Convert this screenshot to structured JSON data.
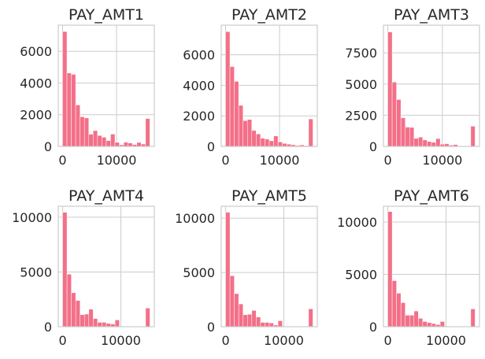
{
  "chart_data": [
    {
      "type": "bar",
      "title": "PAY_AMT1",
      "bin_lefts": [
        0,
        809,
        1618,
        2427,
        3236,
        4045,
        4854,
        5663,
        6472,
        7281,
        8090,
        8899,
        9708,
        10517,
        11326,
        12135,
        12944,
        13753,
        14562,
        15371
      ],
      "bin_width": 809,
      "values": [
        7250,
        4630,
        4550,
        2620,
        1870,
        1800,
        770,
        1000,
        690,
        580,
        370,
        780,
        260,
        100,
        270,
        220,
        120,
        250,
        150,
        1760
      ],
      "xlim": [
        -800,
        17000
      ],
      "ylim": [
        0,
        7650
      ],
      "xticks": [
        0,
        10000
      ],
      "xtick_labels": [
        "0",
        "10000"
      ],
      "yticks": [
        0,
        2000,
        4000,
        6000
      ],
      "ytick_labels": [
        "0",
        "2000",
        "4000",
        "6000"
      ]
    },
    {
      "type": "bar",
      "title": "PAY_AMT2",
      "bin_lefts": [
        0,
        810,
        1620,
        2430,
        3240,
        4050,
        4860,
        5670,
        6480,
        7290,
        8100,
        8910,
        9720,
        10530,
        11340,
        12150,
        12960,
        13770,
        14580,
        15390
      ],
      "bin_width": 810,
      "values": [
        7520,
        5230,
        4260,
        2690,
        1690,
        1770,
        1050,
        820,
        540,
        480,
        370,
        690,
        300,
        200,
        150,
        110,
        70,
        100,
        50,
        1800
      ],
      "xlim": [
        -800,
        17000
      ],
      "ylim": [
        0,
        7940
      ],
      "xticks": [
        0,
        10000
      ],
      "xtick_labels": [
        "0",
        "10000"
      ],
      "yticks": [
        0,
        2000,
        4000,
        6000
      ],
      "ytick_labels": [
        "0",
        "2000",
        "4000",
        "6000"
      ]
    },
    {
      "type": "bar",
      "title": "PAY_AMT3",
      "bin_lefts": [
        0,
        800,
        1600,
        2400,
        3200,
        4000,
        4800,
        5600,
        6400,
        7200,
        8000,
        8800,
        9600,
        10400,
        11200,
        12000,
        12800,
        13600,
        14400,
        15200
      ],
      "bin_width": 800,
      "values": [
        9180,
        5160,
        3760,
        2300,
        1550,
        1530,
        650,
        750,
        520,
        400,
        330,
        630,
        180,
        220,
        100,
        150,
        50,
        50,
        50,
        1620
      ],
      "xlim": [
        -800,
        16800
      ],
      "ylim": [
        0,
        9720
      ],
      "xticks": [
        0,
        10000
      ],
      "xtick_labels": [
        "0",
        "10000"
      ],
      "yticks": [
        0,
        2500,
        5000,
        7500
      ],
      "ytick_labels": [
        "0",
        "2500",
        "5000",
        "7500"
      ]
    },
    {
      "type": "bar",
      "title": "PAY_AMT4",
      "bin_lefts": [
        0,
        750,
        1500,
        2250,
        3000,
        3750,
        4500,
        5250,
        6000,
        6750,
        7500,
        8250,
        9000,
        9750,
        10500,
        11250,
        12000,
        12750,
        13500,
        14250
      ],
      "bin_width": 750,
      "values": [
        10450,
        4800,
        3100,
        2400,
        1100,
        1150,
        1600,
        750,
        400,
        400,
        300,
        250,
        620,
        0,
        0,
        0,
        0,
        0,
        0,
        1700
      ],
      "xlim": [
        -750,
        15750
      ],
      "ylim": [
        0,
        11000
      ],
      "xticks": [
        0,
        10000
      ],
      "xtick_labels": [
        "0",
        "10000"
      ],
      "yticks": [
        0,
        5000,
        10000
      ],
      "ytick_labels": [
        "0",
        "5000",
        "10000"
      ]
    },
    {
      "type": "bar",
      "title": "PAY_AMT5",
      "bin_lefts": [
        0,
        750,
        1500,
        2250,
        3000,
        3750,
        4500,
        5250,
        6000,
        6750,
        7500,
        8250,
        9000,
        9750,
        10500,
        11250,
        12000,
        12750,
        13500,
        14250
      ],
      "bin_width": 750,
      "values": [
        10550,
        4700,
        3050,
        2100,
        1100,
        1150,
        1500,
        900,
        400,
        400,
        350,
        150,
        550,
        0,
        0,
        0,
        0,
        0,
        0,
        1650
      ],
      "xlim": [
        -750,
        15750
      ],
      "ylim": [
        0,
        11100
      ],
      "xticks": [
        0,
        10000
      ],
      "xtick_labels": [
        "0",
        "10000"
      ],
      "yticks": [
        0,
        5000,
        10000
      ],
      "ytick_labels": [
        "0",
        "5000",
        "10000"
      ]
    },
    {
      "type": "bar",
      "title": "PAY_AMT6",
      "bin_lefts": [
        0,
        750,
        1500,
        2250,
        3000,
        3750,
        4500,
        5250,
        6000,
        6750,
        7500,
        8250,
        9000,
        9750,
        10500,
        11250,
        12000,
        12750,
        13500,
        14250
      ],
      "bin_width": 750,
      "values": [
        11000,
        4400,
        3200,
        2300,
        1100,
        1100,
        1500,
        800,
        500,
        400,
        300,
        200,
        500,
        0,
        0,
        0,
        0,
        0,
        0,
        1700
      ],
      "xlim": [
        -750,
        15750
      ],
      "ylim": [
        0,
        11500
      ],
      "xticks": [
        0,
        10000
      ],
      "xtick_labels": [
        "0",
        "10000"
      ],
      "yticks": [
        0,
        5000,
        10000
      ],
      "ytick_labels": [
        "0",
        "5000",
        "10000"
      ]
    }
  ],
  "style": {
    "bar_color": "#f37088",
    "grid_color": "#cccccc",
    "text_color": "#262626"
  }
}
